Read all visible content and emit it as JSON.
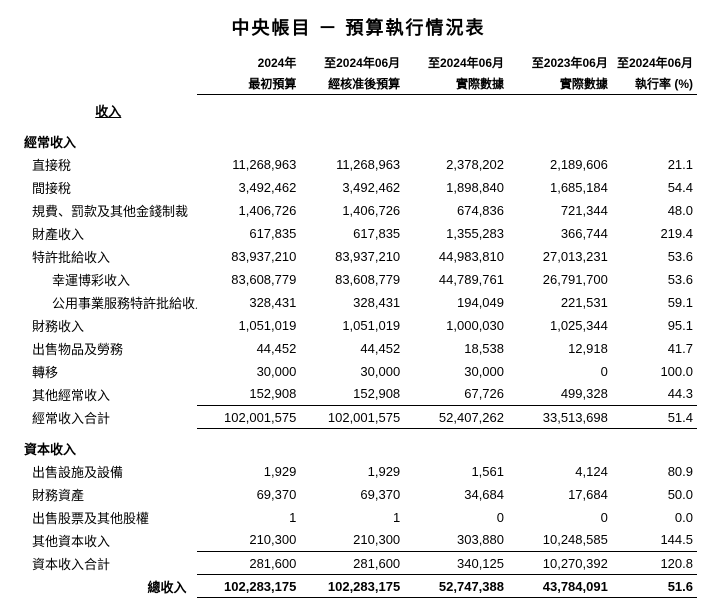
{
  "title": "中央帳目 － 預算執行情況表",
  "columns": {
    "c1_top": "2024年",
    "c1_sub": "最初預算",
    "c2_top": "至2024年06月",
    "c2_sub": "經核准後預算",
    "c3_top": "至2024年06月",
    "c3_sub": "實際數據",
    "c4_top": "至2023年06月",
    "c4_sub": "實際數據",
    "c5_top": "至2024年06月",
    "c5_sub": "執行率 (%)"
  },
  "section_income": "收入",
  "section_recurrent": "經常收入",
  "rows_recurrent": [
    {
      "label": "直接稅",
      "v": [
        "11,268,963",
        "11,268,963",
        "2,378,202",
        "2,189,606",
        "21.1"
      ]
    },
    {
      "label": "間接稅",
      "v": [
        "3,492,462",
        "3,492,462",
        "1,898,840",
        "1,685,184",
        "54.4"
      ]
    },
    {
      "label": "規費、罰款及其他金錢制裁",
      "v": [
        "1,406,726",
        "1,406,726",
        "674,836",
        "721,344",
        "48.0"
      ]
    },
    {
      "label": "財產收入",
      "v": [
        "617,835",
        "617,835",
        "1,355,283",
        "366,744",
        "219.4"
      ]
    },
    {
      "label": "特許批給收入",
      "v": [
        "83,937,210",
        "83,937,210",
        "44,983,810",
        "27,013,231",
        "53.6"
      ]
    },
    {
      "label": "幸運博彩收入",
      "indent": 2,
      "v": [
        "83,608,779",
        "83,608,779",
        "44,789,761",
        "26,791,700",
        "53.6"
      ]
    },
    {
      "label": "公用事業服務特許批給收入",
      "indent": 2,
      "v": [
        "328,431",
        "328,431",
        "194,049",
        "221,531",
        "59.1"
      ]
    },
    {
      "label": "財務收入",
      "v": [
        "1,051,019",
        "1,051,019",
        "1,000,030",
        "1,025,344",
        "95.1"
      ]
    },
    {
      "label": "出售物品及勞務",
      "v": [
        "44,452",
        "44,452",
        "18,538",
        "12,918",
        "41.7"
      ]
    },
    {
      "label": "轉移",
      "v": [
        "30,000",
        "30,000",
        "30,000",
        "0",
        "100.0"
      ]
    },
    {
      "label": "其他經常收入",
      "v": [
        "152,908",
        "152,908",
        "67,726",
        "499,328",
        "44.3"
      ]
    }
  ],
  "subtotal_recurrent": {
    "label": "經常收入合計",
    "v": [
      "102,001,575",
      "102,001,575",
      "52,407,262",
      "33,513,698",
      "51.4"
    ]
  },
  "section_capital": "資本收入",
  "rows_capital": [
    {
      "label": "出售設施及設備",
      "v": [
        "1,929",
        "1,929",
        "1,561",
        "4,124",
        "80.9"
      ]
    },
    {
      "label": "財務資產",
      "v": [
        "69,370",
        "69,370",
        "34,684",
        "17,684",
        "50.0"
      ]
    },
    {
      "label": "出售股票及其他股權",
      "v": [
        "1",
        "1",
        "0",
        "0",
        "0.0"
      ]
    },
    {
      "label": "其他資本收入",
      "v": [
        "210,300",
        "210,300",
        "303,880",
        "10,248,585",
        "144.5"
      ]
    }
  ],
  "subtotal_capital": {
    "label": "資本收入合計",
    "v": [
      "281,600",
      "281,600",
      "340,125",
      "10,270,392",
      "120.8"
    ]
  },
  "grand_total": {
    "label": "總收入",
    "v": [
      "102,283,175",
      "102,283,175",
      "52,747,388",
      "43,784,091",
      "51.6"
    ]
  }
}
